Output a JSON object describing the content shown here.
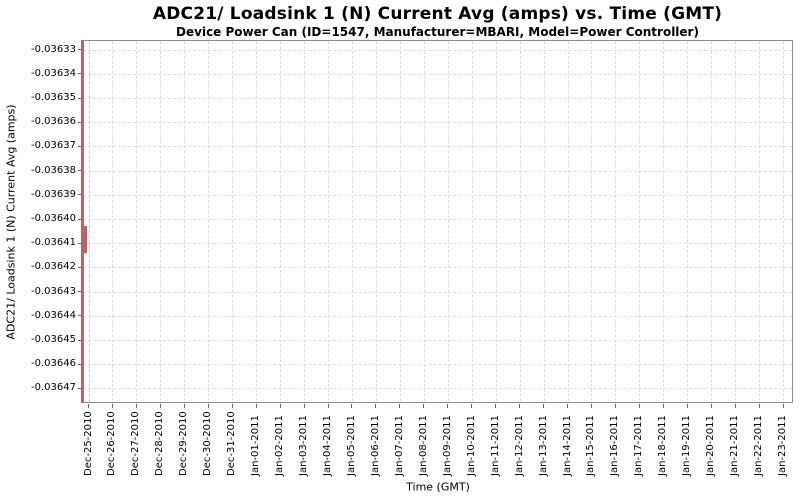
{
  "chart_data": {
    "type": "line",
    "title": "ADC21/ Loadsink 1 (N) Current Avg (amps) vs. Time (GMT)",
    "subtitle": "Device Power Can (ID=1547, Manufacturer=MBARI, Model=Power Controller)",
    "xlabel": "Time (GMT)",
    "ylabel": "ADC21/ Loadsink 1 (N) Current Avg (amps)",
    "legend": "none",
    "grid": true,
    "ylim": [
      -0.036476,
      -0.036326
    ],
    "xlim": [
      "Dec-25-2010",
      "Jan-23-2011"
    ],
    "y_ticks": [
      "-0.03633",
      "-0.03634",
      "-0.03635",
      "-0.03636",
      "-0.03637",
      "-0.03638",
      "-0.03639",
      "-0.03640",
      "-0.03641",
      "-0.03642",
      "-0.03643",
      "-0.03644",
      "-0.03645",
      "-0.03646",
      "-0.03647"
    ],
    "x_ticks": [
      "Dec-25-2010",
      "Dec-26-2010",
      "Dec-27-2010",
      "Dec-28-2010",
      "Dec-29-2010",
      "Dec-30-2010",
      "Dec-31-2010",
      "Jan-01-2011",
      "Jan-02-2011",
      "Jan-03-2011",
      "Jan-04-2011",
      "Jan-05-2011",
      "Jan-06-2011",
      "Jan-07-2011",
      "Jan-08-2011",
      "Jan-09-2011",
      "Jan-10-2011",
      "Jan-11-2011",
      "Jan-12-2011",
      "Jan-13-2011",
      "Jan-14-2011",
      "Jan-15-2011",
      "Jan-16-2011",
      "Jan-17-2011",
      "Jan-18-2011",
      "Jan-19-2011",
      "Jan-20-2011",
      "Jan-21-2011",
      "Jan-22-2011",
      "Jan-23-2011"
    ],
    "series": [
      {
        "name": "ADC21/ Loadsink 1 (N) Current Avg",
        "color": "#b96460",
        "x_range": [
          "Dec-25-2010",
          "Dec-25-2010"
        ],
        "y_range": [
          -0.036476,
          -0.036326
        ],
        "y_dense_range": [
          -0.036414,
          -0.036403
        ],
        "note": "All samples occur at the very start of the time axis (near Dec-25-2010), rendered as a narrow vertical band at the left plot edge spanning the full value range, densest between -0.03641 and -0.03640"
      }
    ]
  }
}
